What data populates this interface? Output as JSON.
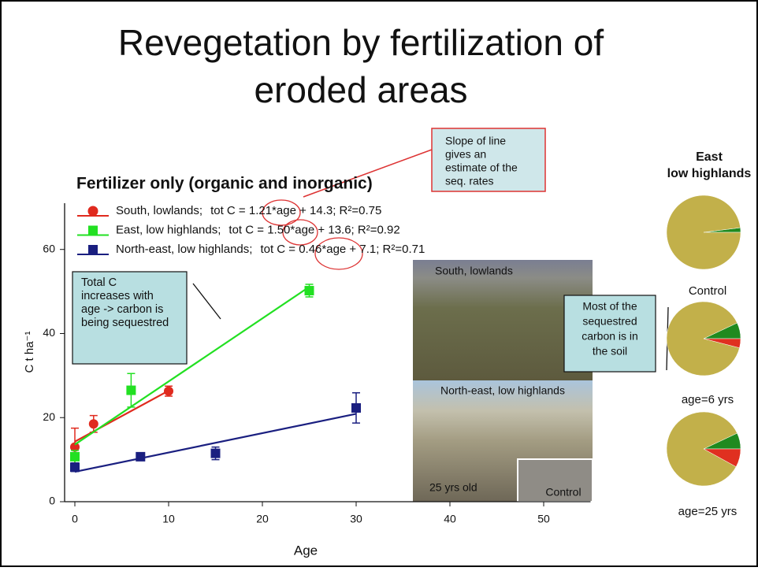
{
  "slide_title_lines": [
    "Revegetation by fertilization of",
    "eroded areas"
  ],
  "chart_data": [
    {
      "type": "scatter",
      "title": "Fertilizer only (organic and inorganic)",
      "x_label": "Age",
      "y_label": "C t ha⁻¹",
      "xlim": [
        -1,
        55
      ],
      "xticks": [
        0,
        10,
        20,
        30,
        40,
        50
      ],
      "ylim": [
        0,
        71
      ],
      "yticks": [
        0,
        20,
        40,
        60
      ],
      "series": [
        {
          "name": "South, lowlands;",
          "color": "#e02a1e",
          "marker": "circle",
          "x": [
            0,
            2,
            10
          ],
          "values": [
            13,
            18.5,
            26.3
          ],
          "errors": [
            4.5,
            2,
            1.2
          ],
          "fit": {
            "slope": 1.21,
            "intercept": 14.3,
            "r2": 0.75,
            "label": "tot C = 1.21*age + 14.3;  R²=0.75"
          }
        },
        {
          "name": "East, low highlands;",
          "color": "#22e022",
          "marker": "square",
          "x": [
            0,
            6,
            25
          ],
          "values": [
            10.7,
            26.5,
            50.2
          ],
          "errors": [
            1.5,
            4,
            1.5
          ],
          "fit": {
            "slope": 1.5,
            "intercept": 13.6,
            "r2": 0.92,
            "label": "tot C = 1.50*age + 13.6;  R²=0.92"
          }
        },
        {
          "name": "North-east, low highlands;",
          "color": "#1a1f80",
          "marker": "square",
          "x": [
            0,
            7,
            15,
            30
          ],
          "values": [
            8.2,
            10.7,
            11.5,
            22.3
          ],
          "errors": [
            1,
            0.8,
            1.5,
            3.6
          ],
          "fit": {
            "slope": 0.46,
            "intercept": 7.1,
            "r2": 0.71,
            "label": "tot C = 0.46*age + 7.1;  R²=0.71"
          }
        }
      ]
    },
    {
      "type": "pie",
      "title": "Control",
      "categories": [
        null,
        null
      ],
      "values": [
        2,
        98
      ],
      "colors": [
        "#1f8a1f",
        "#c2b04a"
      ]
    },
    {
      "type": "pie",
      "title": "age=6 yrs",
      "categories": [
        null,
        null,
        null
      ],
      "values": [
        7,
        89,
        4
      ],
      "colors": [
        "#1f8a1f",
        "#c2b04a",
        "#e03020"
      ]
    },
    {
      "type": "pie",
      "title": "age=25 yrs",
      "categories": [
        null,
        null,
        null
      ],
      "values": [
        7,
        85,
        8
      ],
      "colors": [
        "#1f8a1f",
        "#c2b04a",
        "#e03020"
      ]
    }
  ],
  "pie_header_lines": [
    "East",
    "low highlands"
  ],
  "slope_note_lines": [
    "Slope of line",
    "gives an",
    "estimate of the",
    "seq. rates"
  ],
  "total_note_lines": [
    "Total C",
    "increases with",
    "age -> carbon is",
    "being sequestred"
  ],
  "soil_note_lines": [
    "Most of the",
    "sequestred",
    "carbon is in",
    "the soil"
  ],
  "photo_labels": [
    "South, lowlands",
    "North-east, low highlands",
    "25 yrs old",
    "Control"
  ]
}
